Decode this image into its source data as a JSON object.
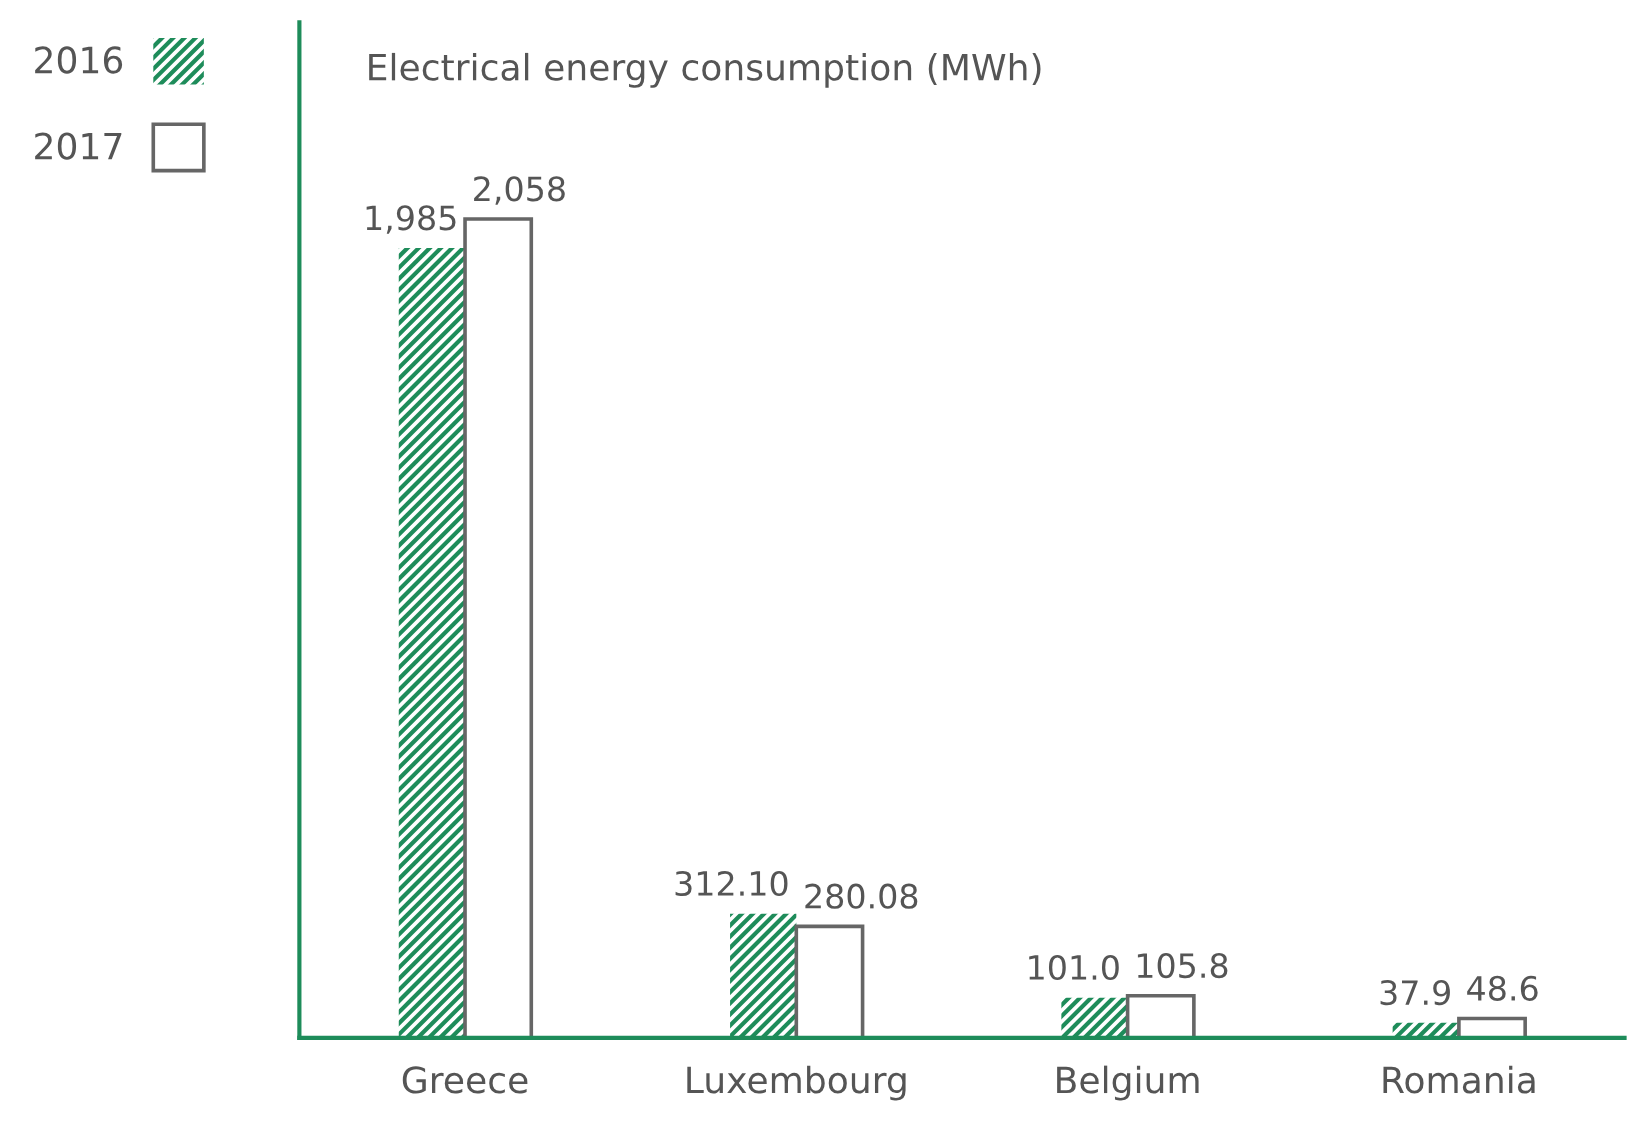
{
  "chart_data": {
    "type": "bar",
    "title": "Electrical energy consumption (MWh)",
    "categories": [
      "Greece",
      "Luxembourg",
      "Belgium",
      "Romania"
    ],
    "series": [
      {
        "name": "2016",
        "color": "#1e8c5a",
        "values": [
          1985,
          312.1,
          101.0,
          37.9
        ],
        "value_labels": [
          "1,985",
          "312.10",
          "101.0",
          "37.9"
        ]
      },
      {
        "name": "2017",
        "color": "#ffffff",
        "values": [
          2058,
          280.08,
          105.8,
          48.6
        ],
        "value_labels": [
          "2,058",
          "280.08",
          "105.8",
          "48.6"
        ]
      }
    ],
    "legend": "top left",
    "tick_labels": "x",
    "grid": false
  }
}
